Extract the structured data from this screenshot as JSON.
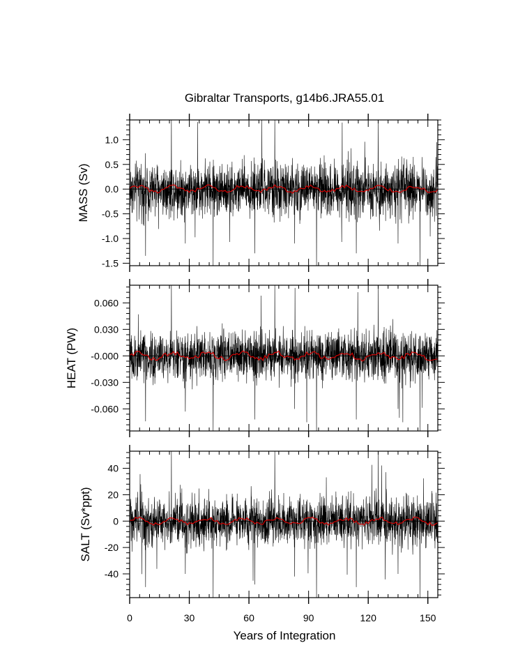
{
  "title": "Gibraltar Transports, g14b6.JRA55.01",
  "xlabel": "Years of Integration",
  "chart_data": [
    {
      "type": "line",
      "ylabel": "MASS (Sv)",
      "xlim": [
        0,
        155
      ],
      "ylim": [
        -1.55,
        1.4
      ],
      "x_ticks": [
        0,
        30,
        60,
        90,
        120,
        150
      ],
      "x_tick_labels": [
        "0",
        "30",
        "60",
        "90",
        "120",
        "150"
      ],
      "y_ticks": [
        -1.5,
        -1.0,
        -0.5,
        0.0,
        0.5,
        1.0
      ],
      "y_tick_labels": [
        "-1.5",
        "-1.0",
        "-0.5",
        "0.0",
        "0.5",
        "1.0"
      ],
      "series": [
        {
          "color": "#000000",
          "values_description": "monthly",
          "amplitude": 0.28,
          "spikes": [
            [
              21,
              1.4
            ],
            [
              42,
              -1.55
            ],
            [
              73,
              1.4
            ],
            [
              94,
              -1.55
            ],
            [
              125,
              1.4
            ],
            [
              146,
              -1.55
            ],
            [
              8,
              -1.35
            ],
            [
              28,
              -1.1
            ],
            [
              63,
              -1.3
            ],
            [
              83,
              -1.1
            ],
            [
              114,
              -1.3
            ],
            [
              135,
              -1.1
            ]
          ]
        },
        {
          "color": "#d40000",
          "values_description": "annual",
          "amplitude": 0.06
        }
      ]
    },
    {
      "type": "line",
      "ylabel": "HEAT (PW)",
      "xlim": [
        0,
        155
      ],
      "ylim": [
        -0.085,
        0.08
      ],
      "x_ticks": [
        0,
        30,
        60,
        90,
        120,
        150
      ],
      "x_tick_labels": [
        "0",
        "30",
        "60",
        "90",
        "120",
        "150"
      ],
      "y_ticks": [
        -0.06,
        -0.03,
        0.0,
        0.03,
        0.06
      ],
      "y_tick_labels": [
        "-0.060",
        "-0.030",
        "-0.000",
        "0.030",
        "0.060"
      ],
      "series": [
        {
          "color": "#000000",
          "values_description": "monthly",
          "amplitude": 0.014,
          "spikes": [
            [
              21,
              0.08
            ],
            [
              42,
              -0.085
            ],
            [
              73,
              0.08
            ],
            [
              94,
              -0.085
            ],
            [
              125,
              0.08
            ],
            [
              146,
              -0.085
            ],
            [
              8,
              -0.074
            ],
            [
              28,
              -0.063
            ],
            [
              63,
              -0.072
            ],
            [
              83,
              -0.06
            ],
            [
              114,
              -0.072
            ],
            [
              135,
              -0.06
            ]
          ]
        },
        {
          "color": "#d40000",
          "values_description": "annual",
          "amplitude": 0.004
        }
      ]
    },
    {
      "type": "line",
      "ylabel": "SALT (Sv*ppt)",
      "xlim": [
        0,
        155
      ],
      "ylim": [
        -58,
        53
      ],
      "x_ticks": [
        0,
        30,
        60,
        90,
        120,
        150
      ],
      "x_tick_labels": [
        "0",
        "30",
        "60",
        "90",
        "120",
        "150"
      ],
      "y_ticks": [
        -40,
        -20,
        0,
        20,
        40
      ],
      "y_tick_labels": [
        "-40",
        "-20",
        "0",
        "20",
        "40"
      ],
      "series": [
        {
          "color": "#000000",
          "values_description": "monthly",
          "amplitude": 9.5,
          "spikes": [
            [
              21,
              53
            ],
            [
              42,
              -58
            ],
            [
              73,
              53
            ],
            [
              94,
              -58
            ],
            [
              125,
              53
            ],
            [
              146,
              -58
            ],
            [
              8,
              -50
            ],
            [
              28,
              -40
            ],
            [
              63,
              -48
            ],
            [
              83,
              -42
            ],
            [
              114,
              -50
            ],
            [
              135,
              -40
            ]
          ]
        },
        {
          "color": "#d40000",
          "values_description": "annual",
          "amplitude": 2.2
        }
      ]
    }
  ]
}
